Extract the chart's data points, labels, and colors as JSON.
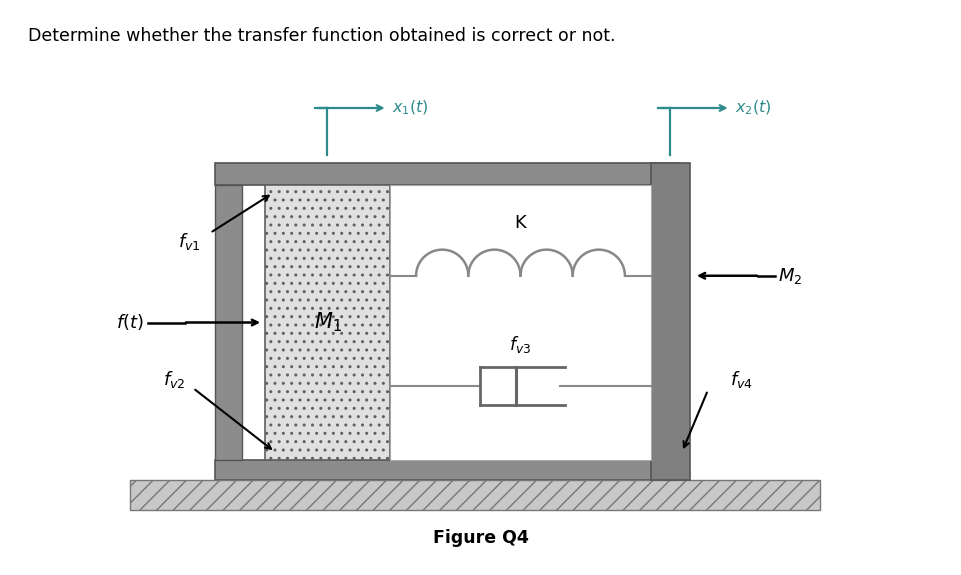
{
  "title": "Determine whether the transfer function obtained is correct or not.",
  "figure_label": "Figure Q4",
  "bg_color": "#ffffff",
  "teal": "#2e8b8b",
  "black": "#000000",
  "struct_gray": "#909090",
  "struct_edge": "#555555",
  "fig_width": 9.62,
  "fig_height": 5.75,
  "dpi": 100
}
